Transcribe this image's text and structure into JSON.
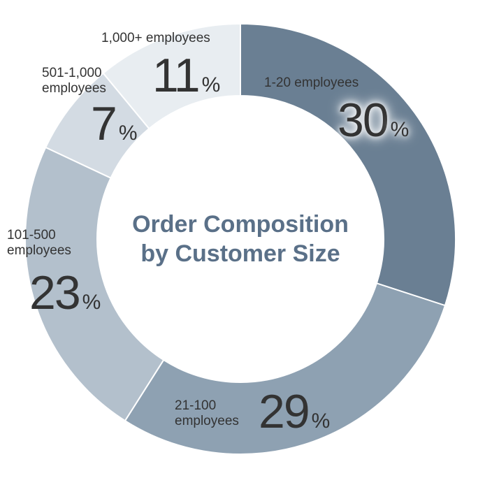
{
  "chart_data": {
    "type": "donut",
    "title": "Order Composition\nby Customer Size",
    "categories": [
      "1-20 employees",
      "21-100\nemployees",
      "101-500\nemployees",
      "501-1,000\nemployees",
      "1,000+ employees"
    ],
    "values": [
      30,
      29,
      23,
      7,
      11
    ],
    "value_labels": [
      "30%",
      "29%",
      "23%",
      "7%",
      "11%"
    ],
    "colors": [
      "#6a7f93",
      "#8ea1b2",
      "#b3c0cc",
      "#d3dbe3",
      "#e8edf1"
    ]
  }
}
